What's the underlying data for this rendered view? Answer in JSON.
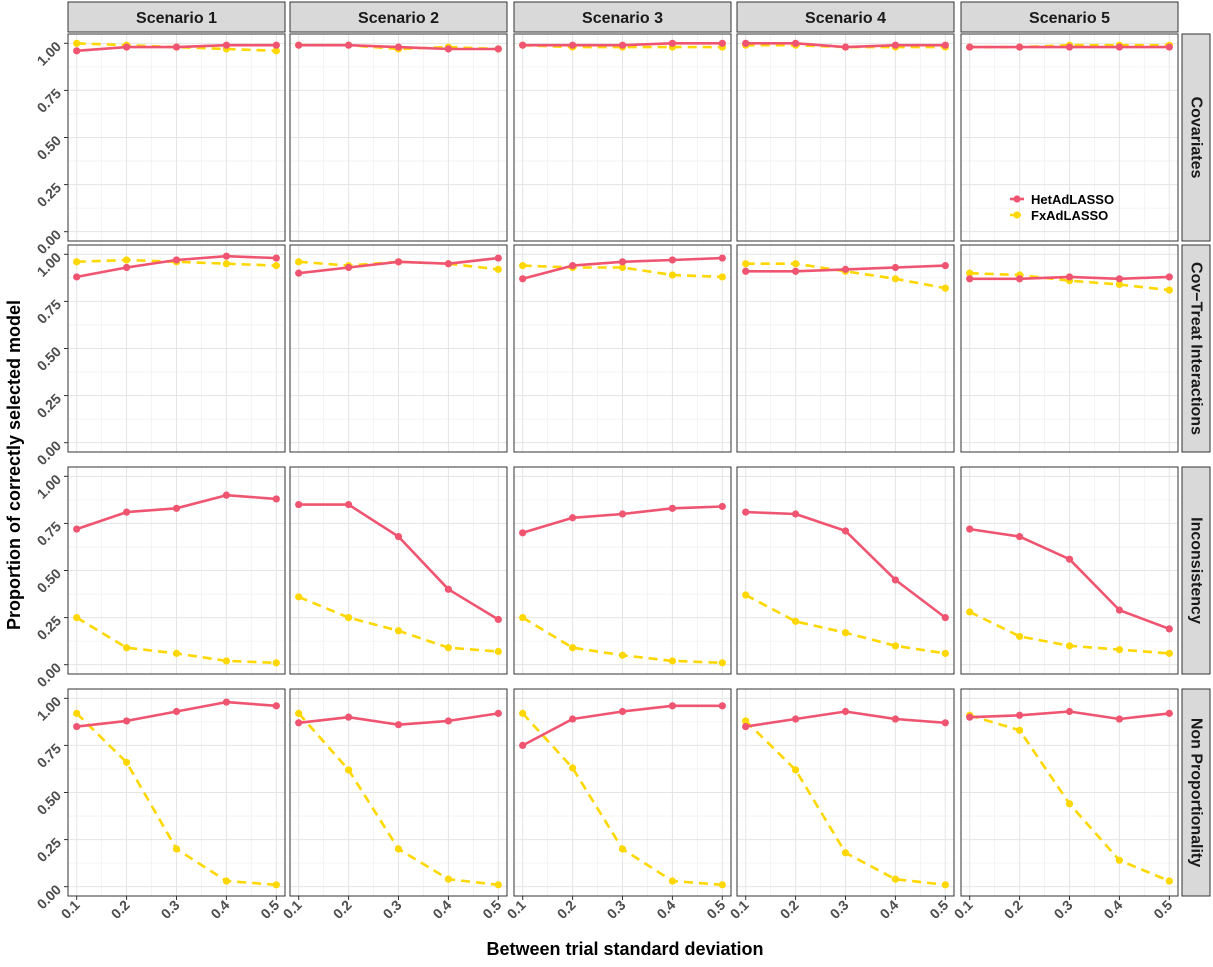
{
  "chart_data": {
    "type": "line",
    "xlabel": "Between trial standard deviation",
    "ylabel": "Proportion of correctly selected model",
    "x": [
      0.1,
      0.2,
      0.3,
      0.4,
      0.5
    ],
    "x_tick_labels": [
      "0.1",
      "0.2",
      "0.3",
      "0.4",
      "0.5"
    ],
    "ylim": [
      0,
      1
    ],
    "y_ticks": [
      0,
      0.25,
      0.5,
      0.75,
      1
    ],
    "y_tick_labels": [
      "0.00",
      "0.25",
      "0.50",
      "0.75",
      "1.00"
    ],
    "grid": true,
    "columns": [
      "Scenario 1",
      "Scenario 2",
      "Scenario 3",
      "Scenario 4",
      "Scenario 5"
    ],
    "rows": [
      "Covariates",
      "Cov−Treat Interactions",
      "Inconsistency",
      "Non Proportionality"
    ],
    "legend": {
      "placement": "inside top-right panel",
      "entries": [
        {
          "name": "HetAdLASSO",
          "color": "#EF5571",
          "linestyle": "solid"
        },
        {
          "name": "FxAdLASSO",
          "color": "#FFD700",
          "linestyle": "dashed"
        }
      ]
    },
    "panels": [
      [
        {
          "HetAdLASSO": [
            0.96,
            0.98,
            0.98,
            0.99,
            0.99
          ],
          "FxAdLASSO": [
            1.0,
            0.99,
            0.98,
            0.97,
            0.96
          ]
        },
        {
          "HetAdLASSO": [
            0.99,
            0.99,
            0.98,
            0.97,
            0.97
          ],
          "FxAdLASSO": [
            0.99,
            0.99,
            0.97,
            0.98,
            0.97
          ]
        },
        {
          "HetAdLASSO": [
            0.99,
            0.99,
            0.99,
            1.0,
            1.0
          ],
          "FxAdLASSO": [
            0.99,
            0.98,
            0.98,
            0.98,
            0.98
          ]
        },
        {
          "HetAdLASSO": [
            1.0,
            1.0,
            0.98,
            0.99,
            0.99
          ],
          "FxAdLASSO": [
            0.99,
            0.99,
            0.98,
            0.98,
            0.98
          ]
        },
        {
          "HetAdLASSO": [
            0.98,
            0.98,
            0.98,
            0.98,
            0.98
          ],
          "FxAdLASSO": [
            0.98,
            0.98,
            0.99,
            0.99,
            0.99
          ]
        }
      ],
      [
        {
          "HetAdLASSO": [
            0.88,
            0.93,
            0.97,
            0.99,
            0.98
          ],
          "FxAdLASSO": [
            0.96,
            0.97,
            0.96,
            0.95,
            0.94
          ]
        },
        {
          "HetAdLASSO": [
            0.9,
            0.93,
            0.96,
            0.95,
            0.98
          ],
          "FxAdLASSO": [
            0.96,
            0.94,
            0.96,
            0.95,
            0.92
          ]
        },
        {
          "HetAdLASSO": [
            0.87,
            0.94,
            0.96,
            0.97,
            0.98
          ],
          "FxAdLASSO": [
            0.94,
            0.93,
            0.93,
            0.89,
            0.88
          ]
        },
        {
          "HetAdLASSO": [
            0.91,
            0.91,
            0.92,
            0.93,
            0.94
          ],
          "FxAdLASSO": [
            0.95,
            0.95,
            0.91,
            0.87,
            0.82
          ]
        },
        {
          "HetAdLASSO": [
            0.87,
            0.87,
            0.88,
            0.87,
            0.88
          ],
          "FxAdLASSO": [
            0.9,
            0.89,
            0.86,
            0.84,
            0.81
          ]
        }
      ],
      [
        {
          "HetAdLASSO": [
            0.72,
            0.81,
            0.83,
            0.9,
            0.88
          ],
          "FxAdLASSO": [
            0.25,
            0.09,
            0.06,
            0.02,
            0.01
          ]
        },
        {
          "HetAdLASSO": [
            0.85,
            0.85,
            0.68,
            0.4,
            0.24
          ],
          "FxAdLASSO": [
            0.36,
            0.25,
            0.18,
            0.09,
            0.07
          ]
        },
        {
          "HetAdLASSO": [
            0.7,
            0.78,
            0.8,
            0.83,
            0.84
          ],
          "FxAdLASSO": [
            0.25,
            0.09,
            0.05,
            0.02,
            0.01
          ]
        },
        {
          "HetAdLASSO": [
            0.81,
            0.8,
            0.71,
            0.45,
            0.25
          ],
          "FxAdLASSO": [
            0.37,
            0.23,
            0.17,
            0.1,
            0.06
          ]
        },
        {
          "HetAdLASSO": [
            0.72,
            0.68,
            0.56,
            0.29,
            0.19
          ],
          "FxAdLASSO": [
            0.28,
            0.15,
            0.1,
            0.08,
            0.06
          ]
        }
      ],
      [
        {
          "HetAdLASSO": [
            0.85,
            0.88,
            0.93,
            0.98,
            0.96
          ],
          "FxAdLASSO": [
            0.92,
            0.66,
            0.2,
            0.03,
            0.01
          ]
        },
        {
          "HetAdLASSO": [
            0.87,
            0.9,
            0.86,
            0.88,
            0.92
          ],
          "FxAdLASSO": [
            0.92,
            0.62,
            0.2,
            0.04,
            0.01
          ]
        },
        {
          "HetAdLASSO": [
            0.75,
            0.89,
            0.93,
            0.96,
            0.96
          ],
          "FxAdLASSO": [
            0.92,
            0.63,
            0.2,
            0.03,
            0.01
          ]
        },
        {
          "HetAdLASSO": [
            0.85,
            0.89,
            0.93,
            0.89,
            0.87
          ],
          "FxAdLASSO": [
            0.88,
            0.62,
            0.18,
            0.04,
            0.01
          ]
        },
        {
          "HetAdLASSO": [
            0.9,
            0.91,
            0.93,
            0.89,
            0.92
          ],
          "FxAdLASSO": [
            0.91,
            0.83,
            0.44,
            0.14,
            0.03
          ]
        }
      ]
    ]
  }
}
